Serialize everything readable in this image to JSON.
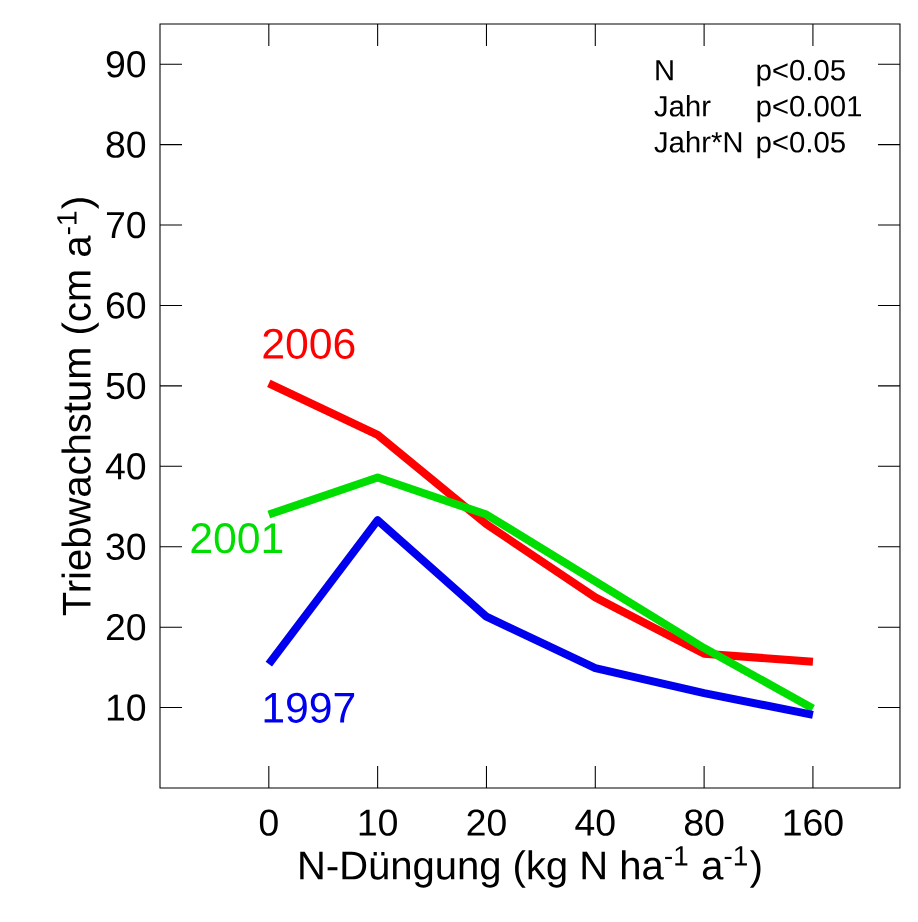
{
  "chart_data": {
    "type": "line",
    "xlabel": "N-Düngung (kg N ha$^{-1}$ a$^{-1}$)",
    "ylabel": "Triebwachstum (cm a$^{-1}$)",
    "categories": [
      "0",
      "10",
      "20",
      "40",
      "80",
      "160"
    ],
    "ylim": [
      0,
      95
    ],
    "yticks": [
      10,
      20,
      30,
      40,
      50,
      60,
      70,
      80,
      90
    ],
    "series": [
      {
        "name": "2006",
        "color": "#ff0000",
        "values": [
          50.3,
          43.9,
          32.8,
          23.7,
          16.7,
          15.7
        ]
      },
      {
        "name": "2001",
        "color": "#00dd00",
        "values": [
          34.0,
          38.6,
          34.0,
          25.7,
          17.4,
          9.9
        ]
      },
      {
        "name": "1997",
        "color": "#0000ee",
        "values": [
          15.4,
          33.3,
          21.3,
          14.9,
          11.8,
          9.1
        ]
      }
    ],
    "annotations": [
      "N",
      "p<0.05",
      "Jahr",
      "p<0.001",
      "Jahr*N",
      "p<0.05"
    ],
    "grid": false,
    "legend": false,
    "marker": "none",
    "line_style": "solid"
  }
}
